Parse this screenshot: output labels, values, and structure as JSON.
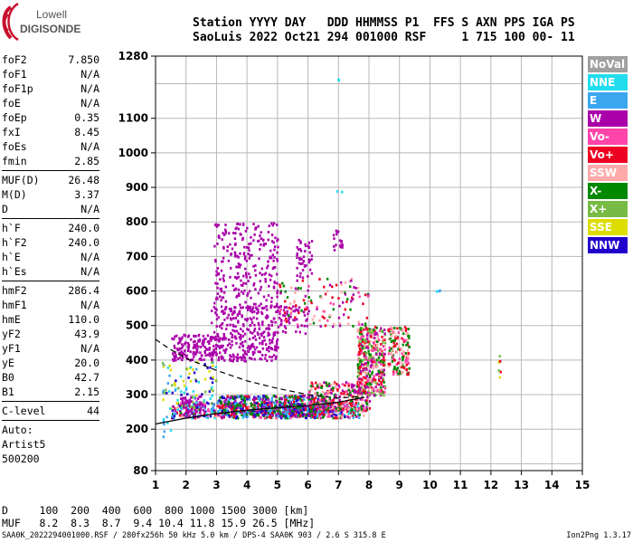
{
  "logo": {
    "line1": "Lowell",
    "line2": "DIGISONDE"
  },
  "header": {
    "line1": "Station YYYY DAY   DDD HHMMSS P1  FFS S AXN PPS IGA PS",
    "line2": "SaoLuis 2022 Oct21 294 001000 RSF     1 715 100 00- 11"
  },
  "params": {
    "group1": [
      {
        "label": "foF2",
        "value": "7.850"
      },
      {
        "label": "foF1",
        "value": "N/A"
      },
      {
        "label": "foF1p",
        "value": "N/A"
      },
      {
        "label": "foE",
        "value": "N/A"
      },
      {
        "label": "foEp",
        "value": "0.35"
      },
      {
        "label": "fxI",
        "value": "8.45"
      },
      {
        "label": "foEs",
        "value": "N/A"
      },
      {
        "label": "fmin",
        "value": "2.85"
      }
    ],
    "group2": [
      {
        "label": "MUF(D)",
        "value": "26.48"
      },
      {
        "label": "M(D)",
        "value": "3.37"
      },
      {
        "label": "D",
        "value": "N/A"
      }
    ],
    "group3": [
      {
        "label": "h`F",
        "value": "240.0"
      },
      {
        "label": "h`F2",
        "value": "240.0"
      },
      {
        "label": "h`E",
        "value": "N/A"
      },
      {
        "label": "h`Es",
        "value": "N/A"
      }
    ],
    "group4": [
      {
        "label": "hmF2",
        "value": "286.4"
      },
      {
        "label": "hmF1",
        "value": "N/A"
      },
      {
        "label": "hmE",
        "value": "110.0"
      },
      {
        "label": "yF2",
        "value": "43.9"
      },
      {
        "label": "yF1",
        "value": "N/A"
      },
      {
        "label": "yE",
        "value": "20.0"
      },
      {
        "label": "B0",
        "value": "42.7"
      },
      {
        "label": "B1",
        "value": "2.15"
      }
    ],
    "clevel": {
      "label": "C-level",
      "value": "44"
    },
    "auto": [
      "Auto:",
      "Artist5",
      "500200"
    ]
  },
  "legend": [
    {
      "label": "NoVal",
      "color": "#a0a0a0"
    },
    {
      "label": "NNE",
      "color": "#22ddee"
    },
    {
      "label": "E",
      "color": "#3aa6f0"
    },
    {
      "label": "W",
      "color": "#aa00aa"
    },
    {
      "label": "Vo-",
      "color": "#ff44aa"
    },
    {
      "label": "Vo+",
      "color": "#ee0022"
    },
    {
      "label": "SSW",
      "color": "#ffaaaa"
    },
    {
      "label": "X-",
      "color": "#008800"
    },
    {
      "label": "X+",
      "color": "#77bb44"
    },
    {
      "label": "SSE",
      "color": "#dddd00"
    },
    {
      "label": "NNW",
      "color": "#2200cc"
    }
  ],
  "chart_data": {
    "type": "scatter",
    "x_range": [
      1,
      15
    ],
    "y_range": [
      80,
      1280
    ],
    "x_ticks": [
      "1",
      "2",
      "3",
      "4",
      "5",
      "6",
      "7",
      "8",
      "9",
      "10",
      "11",
      "12",
      "13",
      "14",
      "15"
    ],
    "y_ticks": [
      {
        "value": 80,
        "label": "80"
      },
      {
        "value": 200,
        "label": "200"
      },
      {
        "value": 300,
        "label": "300"
      },
      {
        "value": 400,
        "label": "400"
      },
      {
        "value": 500,
        "label": "500"
      },
      {
        "value": 600,
        "label": "600"
      },
      {
        "value": 700,
        "label": "700"
      },
      {
        "value": 800,
        "label": "800"
      },
      {
        "value": 900,
        "label": "900"
      },
      {
        "value": 1000,
        "label": "1000"
      },
      {
        "value": 1100,
        "label": "1100"
      },
      {
        "value": 1280,
        "label": "1280"
      }
    ],
    "grid": true,
    "profile_solid": [
      [
        1,
        215
      ],
      [
        2,
        232
      ],
      [
        3,
        245
      ],
      [
        4,
        255
      ],
      [
        5,
        262
      ],
      [
        6,
        268
      ],
      [
        7,
        278
      ],
      [
        7.6,
        288
      ],
      [
        7.85,
        292
      ]
    ],
    "profile_dashed": [
      [
        1,
        460
      ],
      [
        1.5,
        430
      ],
      [
        2,
        405
      ],
      [
        3,
        370
      ],
      [
        4,
        340
      ],
      [
        5,
        318
      ],
      [
        6,
        300
      ],
      [
        7,
        290
      ],
      [
        7.8,
        295
      ]
    ],
    "clusters": [
      {
        "class": "mix",
        "f": [
          1.5,
          7.8
        ],
        "h": [
          235,
          280
        ],
        "count": 700,
        "colors": [
          "Vo+",
          "NNW",
          "W",
          "E",
          "X-",
          "Vo-",
          "SSW",
          "NNE"
        ]
      },
      {
        "class": "mix",
        "f": [
          3.0,
          6.5
        ],
        "h": [
          240,
          300
        ],
        "count": 500,
        "colors": [
          "NNW",
          "W",
          "Vo+",
          "E",
          "X-"
        ]
      },
      {
        "class": "mix",
        "f": [
          6.0,
          8.0
        ],
        "h": [
          255,
          340
        ],
        "count": 300,
        "colors": [
          "Vo+",
          "Vo-",
          "X-",
          "SSW",
          "W"
        ]
      },
      {
        "class": "mix",
        "f": [
          7.6,
          8.5
        ],
        "h": [
          300,
          500
        ],
        "count": 420,
        "colors": [
          "Vo+",
          "Vo-",
          "X-",
          "SSW",
          "W",
          "X+"
        ]
      },
      {
        "class": "mix",
        "f": [
          8.6,
          9.3
        ],
        "h": [
          360,
          500
        ],
        "count": 150,
        "colors": [
          "Vo+",
          "Vo-",
          "SSW",
          "X-"
        ]
      },
      {
        "class": "W",
        "f": [
          1.5,
          5.0
        ],
        "h": [
          400,
          480
        ],
        "count": 320,
        "colors": [
          "W"
        ]
      },
      {
        "class": "W",
        "f": [
          1.8,
          2.6
        ],
        "h": [
          240,
          300
        ],
        "count": 60,
        "colors": [
          "W"
        ]
      },
      {
        "class": "W",
        "f": [
          2.8,
          6.0
        ],
        "h": [
          480,
          560
        ],
        "count": 180,
        "colors": [
          "W"
        ]
      },
      {
        "class": "W",
        "f": [
          2.9,
          5.0
        ],
        "h": [
          550,
          800
        ],
        "count": 260,
        "colors": [
          "W"
        ]
      },
      {
        "class": "W",
        "f": [
          5.6,
          6.1
        ],
        "h": [
          640,
          760
        ],
        "count": 45,
        "colors": [
          "W"
        ]
      },
      {
        "class": "W",
        "f": [
          6.8,
          7.1
        ],
        "h": [
          720,
          780
        ],
        "count": 18,
        "colors": [
          "W"
        ]
      },
      {
        "class": "mix",
        "f": [
          5.0,
          8.0
        ],
        "h": [
          500,
          640
        ],
        "count": 130,
        "colors": [
          "W",
          "Vo-",
          "SSW",
          "X-",
          "Vo+"
        ]
      },
      {
        "class": "mix",
        "f": [
          1.2,
          3.0
        ],
        "h": [
          260,
          400
        ],
        "count": 90,
        "colors": [
          "E",
          "NNE",
          "NNW",
          "SSE",
          "X+"
        ]
      },
      {
        "class": "mix",
        "f": [
          12.2,
          12.35
        ],
        "h": [
          350,
          420
        ],
        "count": 7,
        "colors": [
          "Vo+",
          "X+",
          "SSE"
        ]
      },
      {
        "class": "mix",
        "f": [
          10.1,
          10.3
        ],
        "h": [
          598,
          606
        ],
        "count": 3,
        "colors": [
          "NNE",
          "E"
        ]
      },
      {
        "class": "mix",
        "f": [
          6.9,
          7.1
        ],
        "h": [
          890,
          900
        ],
        "count": 2,
        "colors": [
          "NNE"
        ]
      },
      {
        "class": "mix",
        "f": [
          6.9,
          7.0
        ],
        "h": [
          1210,
          1220
        ],
        "count": 2,
        "colors": [
          "NNE"
        ]
      },
      {
        "class": "mix",
        "f": [
          1.2,
          1.5
        ],
        "h": [
          180,
          240
        ],
        "count": 8,
        "colors": [
          "NNE",
          "E"
        ]
      }
    ]
  },
  "muf_table": {
    "d_row": "D     100  200  400  600  800 1000 1500 3000 [km]",
    "muf_row": "MUF   8.2  8.3  8.7  9.4 10.4 11.8 15.9 26.5 [MHz]"
  },
  "footer": "SAA0K_2022294001000.RSF / 280fx256h 50 kHz 5.0 km / DPS-4 SAA0K 903 / 2.6 S 315.8 E",
  "version": "Ion2Png 1.3.17"
}
